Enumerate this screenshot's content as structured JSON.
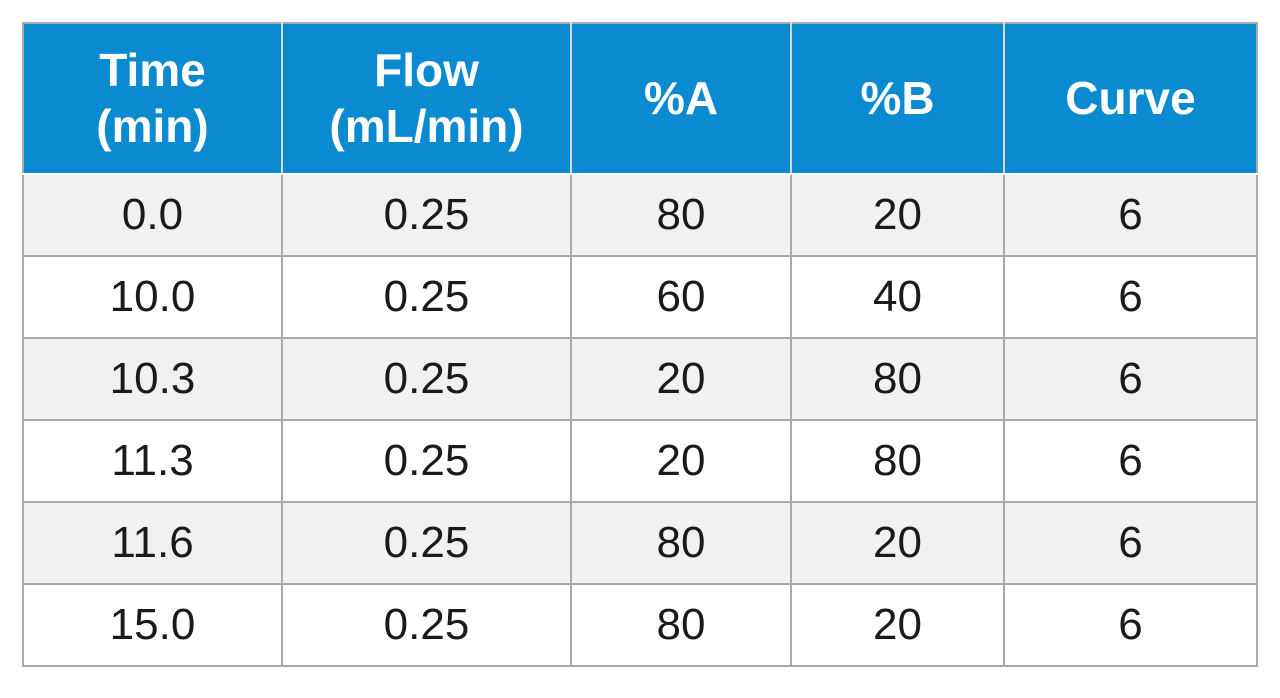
{
  "table": {
    "headers": [
      {
        "line1": "Time",
        "line2": "(min)"
      },
      {
        "line1": "Flow",
        "line2": "(mL/min)"
      },
      {
        "line1": "%A",
        "line2": ""
      },
      {
        "line1": "%B",
        "line2": ""
      },
      {
        "line1": "Curve",
        "line2": ""
      }
    ],
    "rows": [
      [
        "0.0",
        "0.25",
        "80",
        "20",
        "6"
      ],
      [
        "10.0",
        "0.25",
        "60",
        "40",
        "6"
      ],
      [
        "10.3",
        "0.25",
        "20",
        "80",
        "6"
      ],
      [
        "11.3",
        "0.25",
        "20",
        "80",
        "6"
      ],
      [
        "11.6",
        "0.25",
        "80",
        "20",
        "6"
      ],
      [
        "15.0",
        "0.25",
        "80",
        "20",
        "6"
      ]
    ]
  },
  "colors": {
    "header_background": "#0a8ad0",
    "header_text": "#ffffff",
    "row_stripe": "#f1f1f3",
    "border": "#a9a9a9"
  }
}
